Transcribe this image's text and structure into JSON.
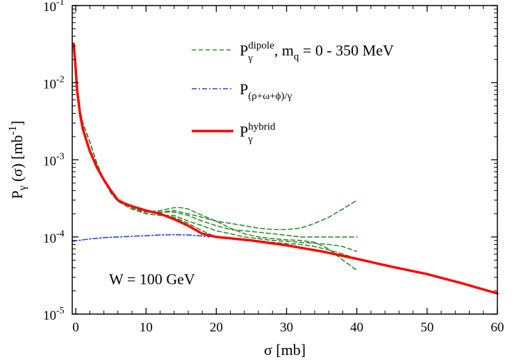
{
  "chart_data": {
    "type": "line",
    "xlabel": "σ [mb]",
    "ylabel": {
      "base": "P",
      "sub": "γ",
      "rest": " (σ) [mb",
      "sup": "-1",
      "close": "]"
    },
    "x_scale": "linear",
    "y_scale": "log",
    "xlim": [
      -0.5,
      60
    ],
    "ylim": [
      1e-05,
      0.1
    ],
    "x_ticks": [
      0,
      10,
      20,
      30,
      40,
      50,
      60
    ],
    "x_tick_labels": [
      "0",
      "10",
      "20",
      "30",
      "40",
      "50",
      "60"
    ],
    "y_ticks": [
      1e-05,
      0.0001,
      0.001,
      0.01,
      0.1
    ],
    "y_tick_labels": [
      {
        "base": "10",
        "exp": "-5"
      },
      {
        "base": "10",
        "exp": "-4"
      },
      {
        "base": "10",
        "exp": "-3"
      },
      {
        "base": "10",
        "exp": "-2"
      },
      {
        "base": "10",
        "exp": "-1"
      }
    ],
    "grid": false,
    "legend_position": "top-right",
    "annotation": "W = 100 GeV",
    "series": [
      {
        "legend": {
          "base": "P",
          "sub": "γ",
          "sup": "dipole",
          "suffix": ", m",
          "suffix_sub": "q",
          "tail": " = 0 - 350 MeV"
        },
        "color": "#2e8b2e",
        "dash": "dashed",
        "curves": [
          [
            [
              0.3,
              0.006
            ],
            [
              1,
              0.003
            ],
            [
              2,
              0.0017
            ],
            [
              3,
              0.0009
            ],
            [
              4,
              0.00055
            ],
            [
              5,
              0.00037
            ],
            [
              6,
              0.00029
            ],
            [
              8,
              0.00024
            ],
            [
              10,
              0.00021
            ],
            [
              12,
              0.00021
            ],
            [
              14,
              0.00022
            ],
            [
              16,
              0.0002
            ],
            [
              18,
              0.00018
            ],
            [
              20,
              0.00016
            ],
            [
              22,
              0.00015
            ],
            [
              24,
              0.00014
            ],
            [
              26,
              0.00013
            ],
            [
              28,
              0.000125
            ],
            [
              30,
              0.000125
            ],
            [
              32,
              0.00013
            ],
            [
              34,
              0.00015
            ],
            [
              36,
              0.00018
            ],
            [
              38,
              0.00023
            ],
            [
              40,
              0.0003
            ]
          ],
          [
            [
              0.3,
              0.006
            ],
            [
              1,
              0.003
            ],
            [
              2,
              0.0017
            ],
            [
              3,
              0.0009
            ],
            [
              4,
              0.00055
            ],
            [
              5,
              0.00037
            ],
            [
              6,
              0.00029
            ],
            [
              8,
              0.00023
            ],
            [
              10,
              0.00021
            ],
            [
              12,
              0.00022
            ],
            [
              14,
              0.00024
            ],
            [
              15,
              0.00024
            ],
            [
              16,
              0.00023
            ],
            [
              18,
              0.00019
            ],
            [
              20,
              0.00016
            ],
            [
              22,
              0.00013
            ],
            [
              24,
              0.00011
            ],
            [
              26,
              0.0001
            ],
            [
              28,
              9.5e-05
            ],
            [
              30,
              9.2e-05
            ],
            [
              32,
              9e-05
            ],
            [
              34,
              8.5e-05
            ],
            [
              36,
              7e-05
            ],
            [
              38,
              5e-05
            ],
            [
              40,
              3.7e-05
            ]
          ],
          [
            [
              0.3,
              0.006
            ],
            [
              1,
              0.003
            ],
            [
              2,
              0.0017
            ],
            [
              3,
              0.0009
            ],
            [
              4,
              0.00055
            ],
            [
              5,
              0.00037
            ],
            [
              6,
              0.00029
            ],
            [
              8,
              0.00023
            ],
            [
              10,
              0.00021
            ],
            [
              12,
              0.00021
            ],
            [
              14,
              0.00021
            ],
            [
              16,
              0.00019
            ],
            [
              18,
              0.00016
            ],
            [
              20,
              0.00014
            ],
            [
              22,
              0.000125
            ],
            [
              24,
              0.00012
            ],
            [
              26,
              0.000115
            ],
            [
              28,
              0.00011
            ],
            [
              30,
              0.000105
            ],
            [
              32,
              0.0001
            ],
            [
              34,
              0.0001
            ],
            [
              36,
              0.0001
            ],
            [
              38,
              0.0001
            ],
            [
              40,
              0.0001
            ]
          ],
          [
            [
              0.3,
              0.006
            ],
            [
              1,
              0.003
            ],
            [
              2,
              0.0017
            ],
            [
              3,
              0.0009
            ],
            [
              4,
              0.00055
            ],
            [
              5,
              0.00037
            ],
            [
              6,
              0.00029
            ],
            [
              8,
              0.00023
            ],
            [
              10,
              0.0002
            ],
            [
              12,
              0.00019
            ],
            [
              14,
              0.00019
            ],
            [
              16,
              0.00016
            ],
            [
              18,
              0.00014
            ],
            [
              20,
              0.00012
            ],
            [
              22,
              0.00011
            ],
            [
              24,
              0.0001
            ],
            [
              26,
              9.5e-05
            ],
            [
              28,
              9e-05
            ],
            [
              30,
              8.8e-05
            ],
            [
              32,
              8.5e-05
            ],
            [
              34,
              8.3e-05
            ],
            [
              36,
              8e-05
            ],
            [
              38,
              7.5e-05
            ],
            [
              40,
              6.5e-05
            ]
          ],
          [
            [
              0.3,
              0.006
            ],
            [
              1,
              0.003
            ],
            [
              2,
              0.0017
            ],
            [
              3,
              0.0009
            ],
            [
              4,
              0.00055
            ],
            [
              5,
              0.00037
            ],
            [
              6,
              0.00029
            ],
            [
              8,
              0.00023
            ],
            [
              10,
              0.0002
            ],
            [
              12,
              0.00019
            ],
            [
              14,
              0.00018
            ],
            [
              16,
              0.00015
            ],
            [
              18,
              0.00012
            ],
            [
              20,
              0.0001
            ],
            [
              22,
              9.5e-05
            ],
            [
              24,
              9e-05
            ],
            [
              26,
              8.7e-05
            ],
            [
              28,
              8.5e-05
            ],
            [
              30,
              8.2e-05
            ],
            [
              32,
              8e-05
            ],
            [
              34,
              7.5e-05
            ],
            [
              36,
              6.8e-05
            ],
            [
              38,
              6e-05
            ],
            [
              40,
              5.2e-05
            ]
          ]
        ]
      },
      {
        "legend": {
          "base": "P",
          "sub": "(ρ+ω+ϕ)/γ"
        },
        "color": "#1f3cff",
        "dash": "dashdot",
        "curves": [
          [
            [
              -0.5,
              8.8e-05
            ],
            [
              2,
              9.4e-05
            ],
            [
              4,
              9.8e-05
            ],
            [
              6,
              0.0001
            ],
            [
              8,
              0.000102
            ],
            [
              10,
              0.000104
            ],
            [
              12,
              0.000106
            ],
            [
              14,
              0.000107
            ],
            [
              16,
              0.000106
            ],
            [
              18,
              0.000103
            ],
            [
              19,
              0.0001
            ]
          ]
        ]
      },
      {
        "legend": {
          "base": "P",
          "sub": "γ",
          "sup": "hybrid"
        },
        "color": "#ff0000",
        "dash": "solid",
        "curves": [
          [
            [
              -0.3,
              0.032
            ],
            [
              -0.1,
              0.02
            ],
            [
              0.2,
              0.008
            ],
            [
              0.6,
              0.004
            ],
            [
              1,
              0.0025
            ],
            [
              2,
              0.0013
            ],
            [
              3,
              0.0008
            ],
            [
              4,
              0.00055
            ],
            [
              5,
              0.0004
            ],
            [
              6,
              0.0003
            ],
            [
              7,
              0.00027
            ],
            [
              8,
              0.00025
            ],
            [
              10,
              0.00022
            ],
            [
              12,
              0.0002
            ],
            [
              14,
              0.00017
            ],
            [
              16,
              0.00014
            ],
            [
              18,
              0.00011
            ],
            [
              20,
              0.0001
            ],
            [
              25,
              9e-05
            ],
            [
              30,
              7.8e-05
            ],
            [
              35,
              6.5e-05
            ],
            [
              40,
              5.2e-05
            ],
            [
              45,
              4.1e-05
            ],
            [
              50,
              3.3e-05
            ],
            [
              55,
              2.5e-05
            ],
            [
              60,
              1.85e-05
            ]
          ]
        ]
      }
    ]
  }
}
